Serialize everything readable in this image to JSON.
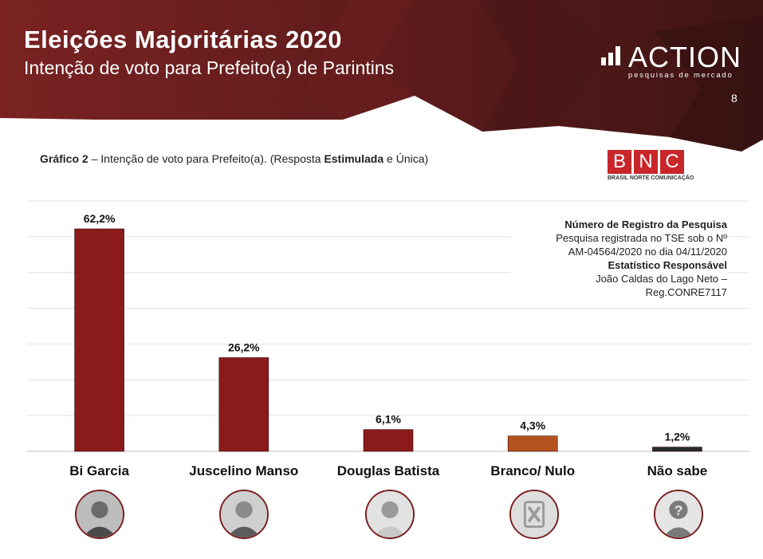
{
  "header": {
    "title": "Eleições Majoritárias 2020",
    "subtitle": "Intenção de voto para Prefeito(a) de Parintins",
    "page_number": "8"
  },
  "logo": {
    "word": "ACTION",
    "tagline": "pesquisas de mercado"
  },
  "caption": {
    "prefix": "Gráfico 2",
    "text1": " – Intenção de voto para Prefeito(a). (Resposta ",
    "bold": "Estimulada",
    "text2": " e Única)"
  },
  "bnc": {
    "letters": [
      "B",
      "N",
      "C"
    ],
    "tagline": "BRASIL NORTE COMUNICAÇÃO"
  },
  "registry": {
    "heading": "Número de Registro da Pesquisa",
    "line1": "Pesquisa registrada no TSE sob o Nº",
    "line2": "AM-04564/2020 no dia 04/11/2020",
    "heading2": "Estatístico Responsável",
    "line3": "João Caldas do Lago Neto –",
    "line4": "Reg.CONRE7117"
  },
  "colors": {
    "header": "#5c1b1b",
    "bar_candidate": "#8b1a1a",
    "bar_branco": "#b5531e",
    "bar_nao_sabe": "#2a2a2a"
  },
  "avatars": [
    "person-photo-icon",
    "person-photo-icon",
    "person-photo-icon",
    "blank-vote-icon",
    "unknown-person-icon"
  ],
  "chart_data": {
    "type": "bar",
    "categories": [
      "Bi Garcia",
      "Juscelino Manso",
      "Douglas Batista",
      "Branco/ Nulo",
      "Não sabe"
    ],
    "values": [
      62.2,
      26.2,
      6.1,
      4.3,
      1.2
    ],
    "data_labels": [
      "62,2%",
      "26,2%",
      "6,1%",
      "4,3%",
      "1,2%"
    ],
    "bar_colors": [
      "#8b1a1a",
      "#8b1a1a",
      "#8b1a1a",
      "#b5531e",
      "#2a2a2a"
    ],
    "title": "",
    "xlabel": "",
    "ylabel": "",
    "ylim": [
      0,
      70
    ],
    "grid": true,
    "legend": "none"
  }
}
